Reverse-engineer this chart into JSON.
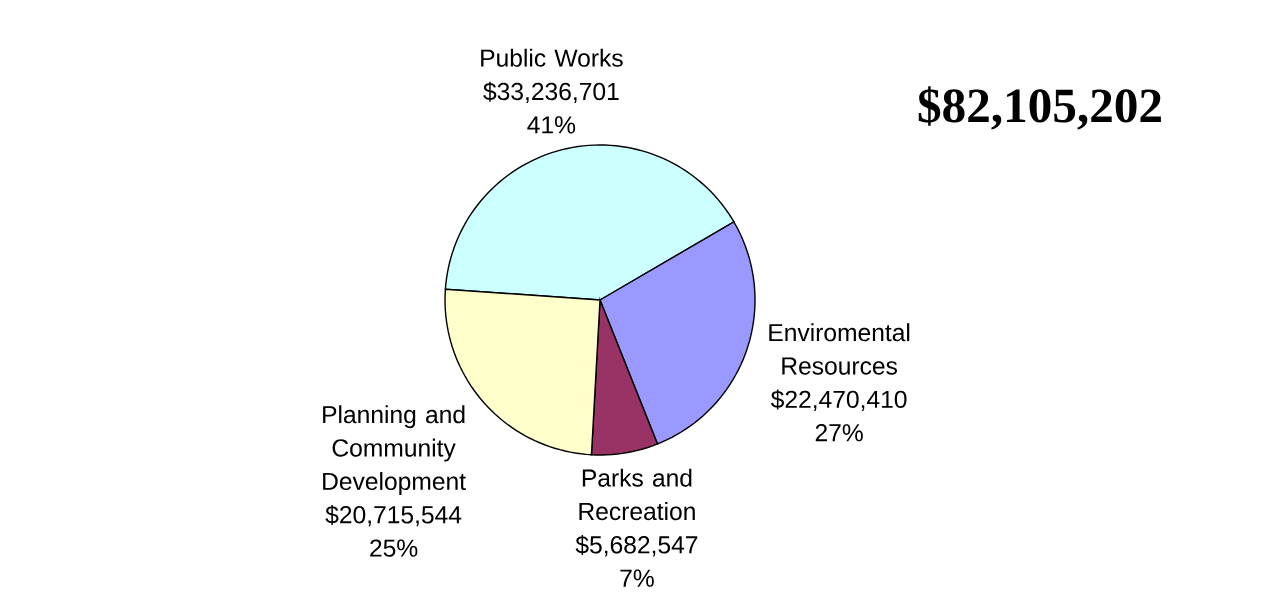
{
  "chart_data": {
    "type": "pie",
    "categories": [
      "Public Works",
      "Enviromental Resources",
      "Parks and Recreation",
      "Planning and Community Development"
    ],
    "values": [
      33236701,
      22470410,
      5682547,
      20715544
    ],
    "value_labels": [
      "$33,236,701 41%",
      "$22,470,410 27%",
      "$5,682,547 7%",
      "$20,715,544 25%"
    ],
    "colors": [
      "#ccffff",
      "#9999ff",
      "#993366",
      "#ffffcc"
    ],
    "annotations": [
      "$82,105,202"
    ]
  }
}
